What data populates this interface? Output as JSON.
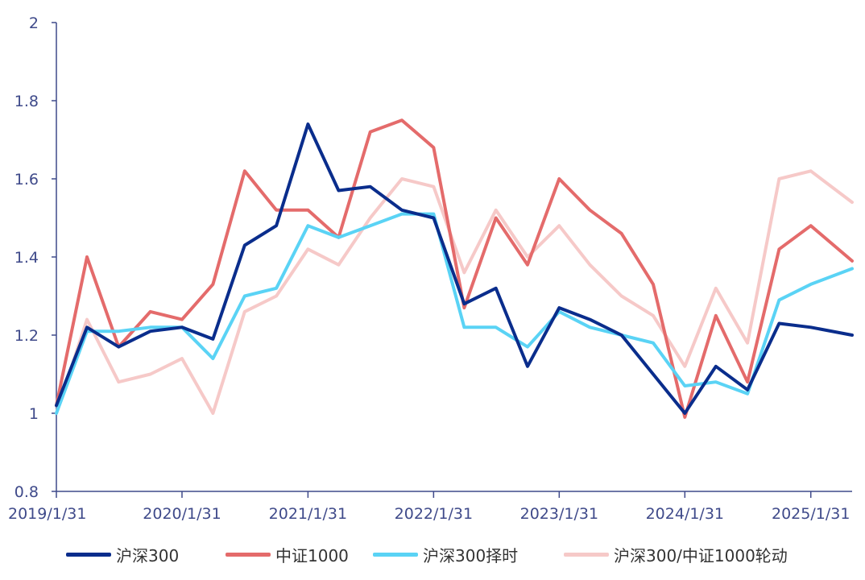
{
  "chart_data": {
    "type": "line",
    "title": "",
    "xlabel": "",
    "ylabel": "",
    "ylim": [
      0.8,
      2.0
    ],
    "y_ticks": [
      "0.8",
      "1",
      "1.2",
      "1.4",
      "1.6",
      "1.8",
      "2"
    ],
    "x_tick_labels": [
      "2019/1/31",
      "2020/1/31",
      "2021/1/31",
      "2022/1/31",
      "2023/1/31",
      "2024/1/31",
      "2025/1/31"
    ],
    "x_range": [
      "2019/1/31",
      "2025/5/31"
    ],
    "x": [
      "2019/1/31",
      "2019/4/30",
      "2019/7/31",
      "2019/10/31",
      "2020/1/31",
      "2020/4/30",
      "2020/7/31",
      "2020/10/31",
      "2021/1/31",
      "2021/4/30",
      "2021/7/31",
      "2021/10/31",
      "2022/1/31",
      "2022/4/30",
      "2022/7/31",
      "2022/10/31",
      "2023/1/31",
      "2023/4/30",
      "2023/7/31",
      "2023/10/31",
      "2024/1/31",
      "2024/4/30",
      "2024/7/31",
      "2024/10/31",
      "2025/1/31",
      "2025/5/31"
    ],
    "series": [
      {
        "name": "沪深300",
        "color": "#0a2d8c",
        "values": [
          1.02,
          1.22,
          1.17,
          1.21,
          1.22,
          1.19,
          1.43,
          1.48,
          1.74,
          1.57,
          1.58,
          1.52,
          1.5,
          1.28,
          1.32,
          1.12,
          1.27,
          1.24,
          1.2,
          1.1,
          1.0,
          1.12,
          1.06,
          1.23,
          1.22,
          1.2
        ]
      },
      {
        "name": "中证1000",
        "color": "#e46b6b",
        "values": [
          1.02,
          1.4,
          1.17,
          1.26,
          1.24,
          1.33,
          1.62,
          1.52,
          1.52,
          1.45,
          1.72,
          1.75,
          1.68,
          1.27,
          1.5,
          1.38,
          1.6,
          1.52,
          1.46,
          1.33,
          0.99,
          1.25,
          1.08,
          1.42,
          1.48,
          1.39
        ]
      },
      {
        "name": "沪深300择时",
        "color": "#5ad3f5",
        "values": [
          1.0,
          1.21,
          1.21,
          1.22,
          1.22,
          1.14,
          1.3,
          1.32,
          1.48,
          1.45,
          1.48,
          1.51,
          1.51,
          1.22,
          1.22,
          1.17,
          1.26,
          1.22,
          1.2,
          1.18,
          1.07,
          1.08,
          1.05,
          1.29,
          1.33,
          1.37
        ]
      },
      {
        "name": "沪深300/中证1000轮动",
        "color": "#f6c9c8",
        "values": [
          1.0,
          1.24,
          1.08,
          1.1,
          1.14,
          1.0,
          1.26,
          1.3,
          1.42,
          1.38,
          1.5,
          1.6,
          1.58,
          1.36,
          1.52,
          1.4,
          1.48,
          1.38,
          1.3,
          1.25,
          1.12,
          1.32,
          1.18,
          1.6,
          1.62,
          1.54
        ]
      }
    ],
    "legend_position": "bottom",
    "grid": false
  }
}
